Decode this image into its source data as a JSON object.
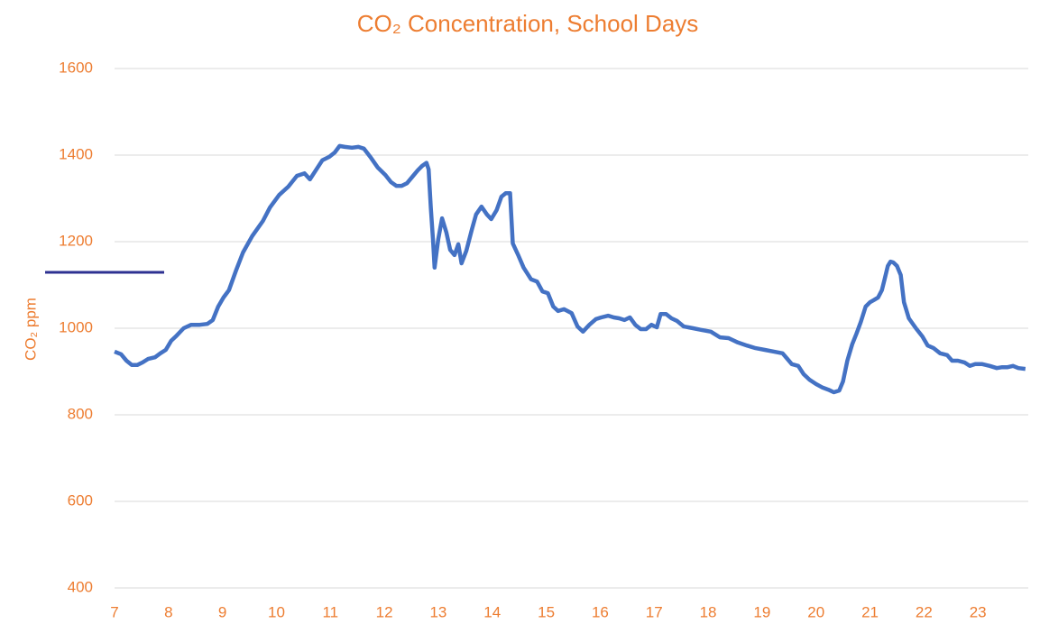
{
  "chart_data": {
    "type": "line",
    "title": "CO₂ Concentration, School Days",
    "y_label": "CO₂ ppm",
    "x": [
      7.0,
      7.12,
      7.22,
      7.32,
      7.42,
      7.52,
      7.62,
      7.75,
      7.85,
      7.95,
      8.05,
      8.15,
      8.28,
      8.42,
      8.58,
      8.72,
      8.82,
      8.92,
      9.02,
      9.12,
      9.25,
      9.38,
      9.55,
      9.75,
      9.88,
      10.05,
      10.22,
      10.38,
      10.52,
      10.62,
      10.72,
      10.85,
      10.98,
      11.08,
      11.17,
      11.27,
      11.4,
      11.52,
      11.62,
      11.75,
      11.88,
      12.02,
      12.12,
      12.22,
      12.32,
      12.42,
      12.52,
      12.62,
      12.7,
      12.78,
      12.82,
      12.86,
      12.9,
      12.93,
      13.0,
      13.07,
      13.15,
      13.22,
      13.3,
      13.37,
      13.43,
      13.52,
      13.62,
      13.7,
      13.8,
      13.9,
      13.98,
      14.08,
      14.17,
      14.25,
      14.33,
      14.38,
      14.48,
      14.58,
      14.72,
      14.83,
      14.93,
      15.03,
      15.13,
      15.22,
      15.33,
      15.47,
      15.58,
      15.68,
      15.8,
      15.92,
      16.02,
      16.15,
      16.25,
      16.35,
      16.45,
      16.55,
      16.65,
      16.75,
      16.85,
      16.95,
      17.05,
      17.12,
      17.22,
      17.32,
      17.42,
      17.55,
      17.72,
      17.88,
      18.05,
      18.22,
      18.38,
      18.55,
      18.72,
      18.88,
      19.05,
      19.22,
      19.38,
      19.47,
      19.55,
      19.67,
      19.77,
      19.88,
      20.0,
      20.12,
      20.23,
      20.33,
      20.43,
      20.5,
      20.58,
      20.67,
      20.75,
      20.83,
      20.92,
      21.0,
      21.07,
      21.15,
      21.22,
      21.27,
      21.33,
      21.38,
      21.43,
      21.5,
      21.57,
      21.63,
      21.72,
      21.85,
      21.97,
      22.07,
      22.18,
      22.3,
      22.43,
      22.52,
      22.63,
      22.75,
      22.85,
      22.95,
      23.08,
      23.22,
      23.35,
      23.45,
      23.55,
      23.65,
      23.75,
      23.88
    ],
    "series": [
      {
        "name": "CO₂",
        "color": "#4472c4",
        "values": [
          946,
          940,
          925,
          915,
          915,
          921,
          929,
          933,
          942,
          950,
          971,
          983,
          1000,
          1008,
          1008,
          1010,
          1019,
          1050,
          1071,
          1088,
          1133,
          1175,
          1213,
          1248,
          1279,
          1308,
          1327,
          1352,
          1358,
          1344,
          1363,
          1388,
          1396,
          1406,
          1421,
          1419,
          1417,
          1419,
          1415,
          1394,
          1371,
          1354,
          1338,
          1329,
          1329,
          1335,
          1350,
          1365,
          1375,
          1382,
          1367,
          1279,
          1206,
          1140,
          1206,
          1254,
          1221,
          1181,
          1169,
          1194,
          1150,
          1179,
          1227,
          1263,
          1281,
          1263,
          1252,
          1273,
          1304,
          1312,
          1312,
          1196,
          1169,
          1140,
          1113,
          1108,
          1085,
          1081,
          1050,
          1040,
          1044,
          1035,
          1004,
          992,
          1008,
          1021,
          1025,
          1029,
          1025,
          1023,
          1019,
          1025,
          1008,
          998,
          998,
          1008,
          1002,
          1033,
          1033,
          1023,
          1017,
          1004,
          1000,
          996,
          992,
          979,
          977,
          967,
          960,
          954,
          950,
          946,
          942,
          929,
          917,
          913,
          894,
          881,
          871,
          863,
          858,
          852,
          856,
          877,
          925,
          963,
          988,
          1015,
          1050,
          1060,
          1065,
          1071,
          1088,
          1113,
          1144,
          1154,
          1152,
          1144,
          1123,
          1060,
          1023,
          1000,
          981,
          960,
          954,
          942,
          938,
          925,
          925,
          921,
          913,
          917,
          917,
          913,
          908,
          910,
          910,
          913,
          908,
          906
        ]
      }
    ],
    "xlim": [
      7,
      24
    ],
    "xticks": [
      7,
      8,
      9,
      10,
      11,
      12,
      13,
      14,
      15,
      16,
      17,
      18,
      19,
      20,
      21,
      22,
      23
    ],
    "ylim": [
      400,
      1600
    ],
    "yticks": [
      400,
      600,
      800,
      1000,
      1200,
      1400,
      1600
    ],
    "grid": true,
    "text_color": "#ed7d31"
  }
}
